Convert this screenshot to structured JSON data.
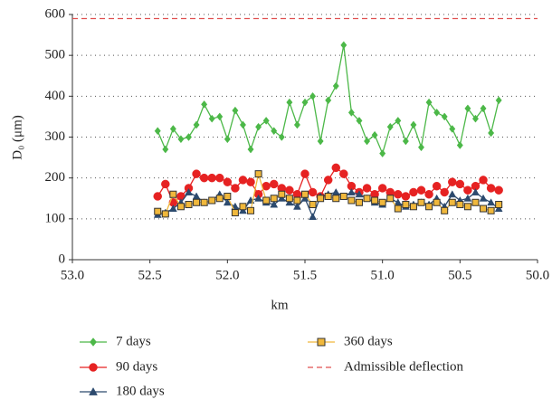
{
  "chart_data": {
    "type": "line",
    "x_label": "km",
    "y_label": "D₀ (μm)",
    "xlim": [
      53.0,
      50.0
    ],
    "xticks": [
      {
        "value": 53.0,
        "label": "53.0"
      },
      {
        "value": 52.5,
        "label": "52.5"
      },
      {
        "value": 52.0,
        "label": "52.0"
      },
      {
        "value": 51.5,
        "label": "51.5"
      },
      {
        "value": 51.0,
        "label": "51.0"
      },
      {
        "value": 50.5,
        "label": "50.5"
      },
      {
        "value": 50.0,
        "label": "50.0"
      }
    ],
    "ylim": [
      0,
      600
    ],
    "yticks": [
      0,
      100,
      200,
      300,
      400,
      500,
      600
    ],
    "grid": true,
    "x": [
      52.45,
      52.4,
      52.35,
      52.3,
      52.25,
      52.2,
      52.15,
      52.1,
      52.05,
      52.0,
      51.95,
      51.9,
      51.85,
      51.8,
      51.75,
      51.7,
      51.65,
      51.6,
      51.55,
      51.5,
      51.45,
      51.4,
      51.35,
      51.3,
      51.25,
      51.2,
      51.15,
      51.1,
      51.05,
      51.0,
      50.95,
      50.9,
      50.85,
      50.8,
      50.75,
      50.7,
      50.65,
      50.6,
      50.55,
      50.5,
      50.45,
      50.4,
      50.35,
      50.3,
      50.25
    ],
    "series": [
      {
        "name": "7 days",
        "color": "#4cb848",
        "marker": "diamond",
        "values": [
          315,
          270,
          320,
          295,
          300,
          330,
          380,
          345,
          350,
          295,
          365,
          330,
          270,
          325,
          340,
          315,
          300,
          385,
          330,
          385,
          400,
          290,
          390,
          425,
          525,
          360,
          340,
          290,
          305,
          260,
          325,
          340,
          290,
          330,
          275,
          385,
          360,
          350,
          320,
          280,
          370,
          345,
          370,
          310,
          390
        ]
      },
      {
        "name": "90 days",
        "color": "#e62222",
        "marker": "circle",
        "values": [
          155,
          185,
          140,
          155,
          175,
          210,
          200,
          200,
          200,
          190,
          175,
          195,
          190,
          160,
          180,
          185,
          175,
          170,
          160,
          210,
          165,
          155,
          195,
          225,
          210,
          180,
          165,
          175,
          160,
          175,
          165,
          160,
          155,
          165,
          170,
          160,
          180,
          165,
          190,
          185,
          170,
          180,
          195,
          175,
          170
        ]
      },
      {
        "name": "180 days",
        "color": "#2c4a6e",
        "marker": "triangle",
        "values": [
          110,
          115,
          125,
          140,
          165,
          155,
          140,
          145,
          160,
          140,
          130,
          120,
          145,
          150,
          140,
          135,
          150,
          140,
          130,
          150,
          105,
          155,
          160,
          165,
          155,
          165,
          160,
          150,
          140,
          135,
          150,
          140,
          130,
          135,
          140,
          135,
          150,
          130,
          160,
          145,
          150,
          165,
          150,
          140,
          125
        ]
      },
      {
        "name": "360 days",
        "color": "#f0b83c",
        "marker": "square",
        "values": [
          118,
          112,
          160,
          130,
          135,
          140,
          140,
          145,
          150,
          155,
          115,
          130,
          120,
          210,
          145,
          150,
          160,
          150,
          145,
          160,
          135,
          150,
          155,
          150,
          155,
          145,
          140,
          150,
          145,
          140,
          150,
          125,
          135,
          130,
          140,
          130,
          140,
          120,
          140,
          135,
          130,
          140,
          125,
          120,
          135
        ]
      }
    ],
    "reference_lines": [
      {
        "name": "Admissible deflection",
        "value": 590,
        "color": "#e05050"
      }
    ]
  }
}
